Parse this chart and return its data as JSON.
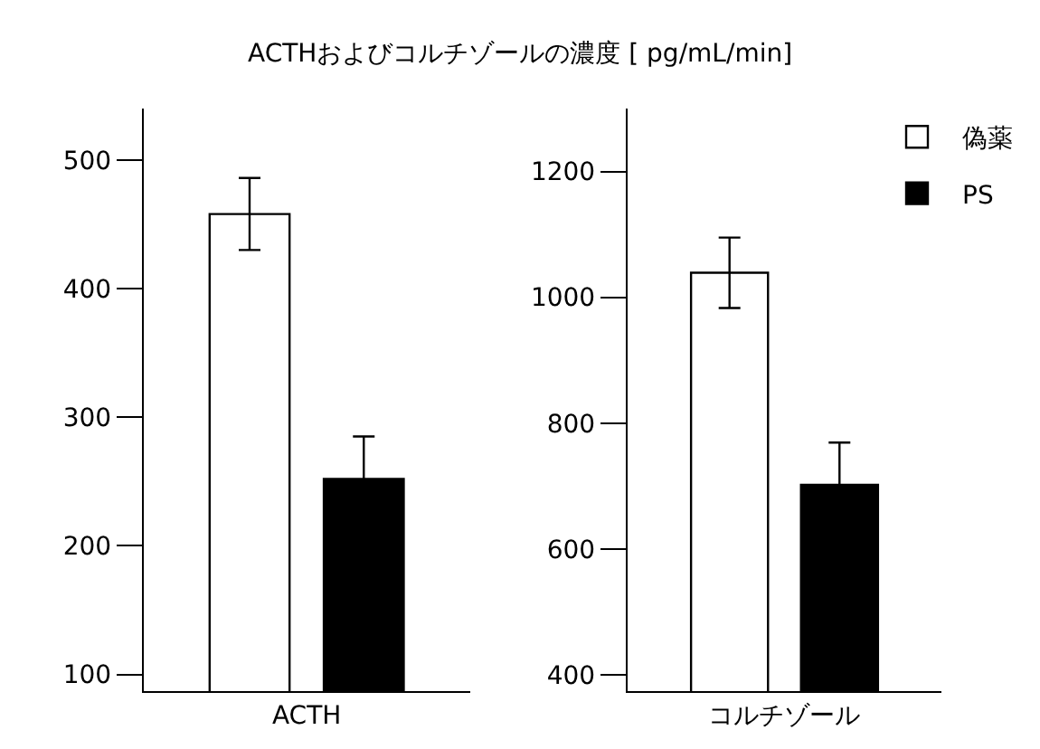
{
  "chart_data": [
    {
      "type": "bar",
      "title": "ACTHおよびコルチゾールの濃度 [ pg/mL/min]",
      "categories": [
        "ACTH"
      ],
      "ylim": [
        87,
        540
      ],
      "yticks": [
        100,
        200,
        300,
        400,
        500
      ],
      "legend": "top right",
      "series": [
        {
          "name": "偽薬",
          "color": "#ffffff",
          "values": [
            458
          ],
          "errors": [
            28
          ]
        },
        {
          "name": "PS",
          "color": "#000000",
          "values": [
            252
          ],
          "errors": [
            33
          ]
        }
      ]
    },
    {
      "type": "bar",
      "categories": [
        "コルチゾール"
      ],
      "ylim": [
        374,
        1300
      ],
      "yticks": [
        400,
        600,
        800,
        1000,
        1200
      ],
      "legend": "top right",
      "series": [
        {
          "color": "#ffffff",
          "values": [
            1039
          ],
          "errors": [
            56
          ]
        },
        {
          "color": "#000000",
          "values": [
            702
          ],
          "errors": [
            67
          ]
        }
      ]
    }
  ]
}
